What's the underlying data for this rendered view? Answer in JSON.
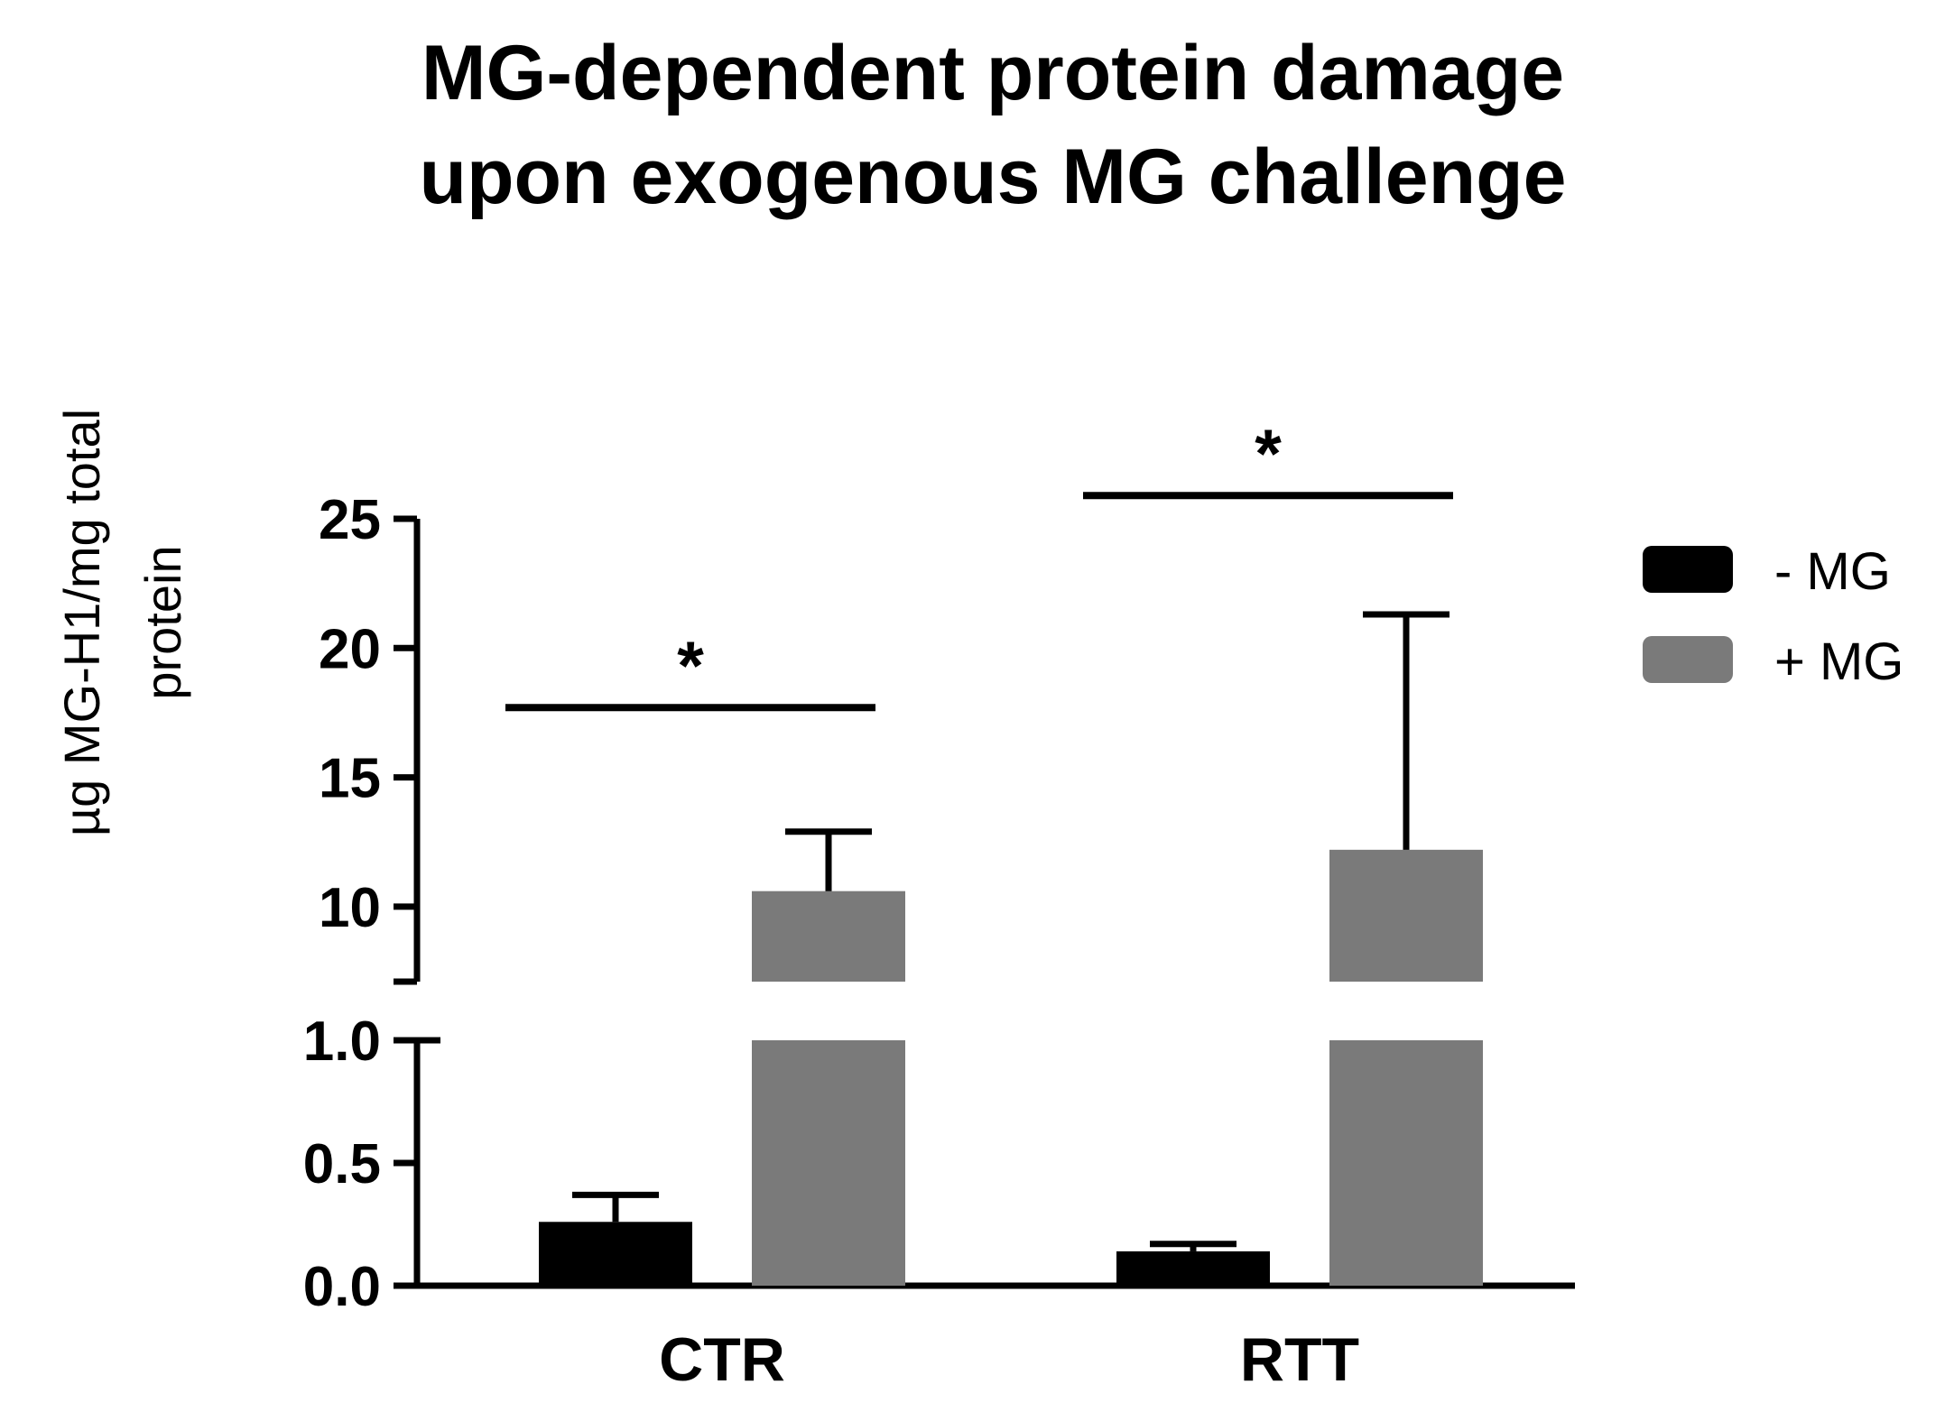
{
  "chart_data": {
    "type": "bar",
    "title_lines": [
      "MG-dependent protein damage",
      "upon exogenous MG challenge"
    ],
    "ylabel_lines": [
      "µg MG-H1/mg total",
      "protein"
    ],
    "xlabel": "",
    "categories": [
      "CTR",
      "RTT"
    ],
    "series": [
      {
        "name": "- MG",
        "color": "#000000",
        "values": [
          0.26,
          0.14
        ],
        "errors": [
          0.11,
          0.03
        ]
      },
      {
        "name": "+ MG",
        "color": "#7a7a7a",
        "values": [
          10.6,
          12.2
        ],
        "errors": [
          2.3,
          9.1
        ]
      }
    ],
    "y_axis": {
      "broken": true,
      "lower_segment": {
        "range": [
          0,
          1.0
        ],
        "ticks": [
          "0.0",
          "0.5",
          "1.0"
        ]
      },
      "upper_segment": {
        "range": [
          7.1,
          25
        ],
        "ticks": [
          "10",
          "15",
          "20",
          "25"
        ]
      }
    },
    "annotations": [
      {
        "text": "*",
        "category": "CTR",
        "bracket_level": 17.7
      },
      {
        "text": "*",
        "category": "RTT",
        "bracket_level": 25.9
      }
    ],
    "legend_placement": "top-right",
    "grid": false
  }
}
